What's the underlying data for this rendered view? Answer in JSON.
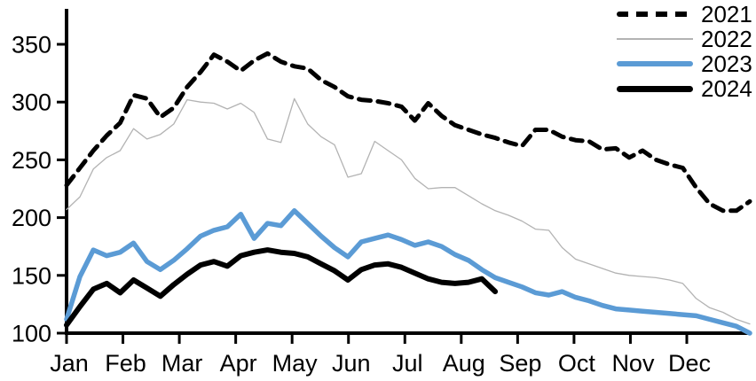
{
  "legend": {
    "items": [
      {
        "label": "2021"
      },
      {
        "label": "2022"
      },
      {
        "label": "2023"
      },
      {
        "label": "2024"
      }
    ]
  },
  "chart_data": {
    "type": "line",
    "title": "",
    "xlabel": "",
    "ylabel": "",
    "x_unit": "weekly points across one year",
    "categories": [
      "Jan",
      "Feb",
      "Mar",
      "Apr",
      "May",
      "Jun",
      "Jul",
      "Aug",
      "Sep",
      "Oct",
      "Nov",
      "Dec"
    ],
    "y_ticks": [
      100,
      150,
      200,
      250,
      300,
      350
    ],
    "ylim": [
      100,
      360
    ],
    "grid": false,
    "legend_position": "top-right",
    "series": [
      {
        "name": "2021",
        "color": "#000000",
        "line_style": "dashed",
        "width": 5,
        "values": [
          228,
          243,
          258,
          271,
          282,
          306,
          303,
          287,
          295,
          313,
          326,
          341,
          335,
          327,
          336,
          342,
          335,
          331,
          329,
          319,
          313,
          305,
          302,
          301,
          299,
          296,
          284,
          299,
          288,
          280,
          276,
          272,
          269,
          265,
          262,
          276,
          276,
          270,
          267,
          266,
          259,
          260,
          252,
          258,
          250,
          246,
          243,
          226,
          212,
          206,
          206,
          214
        ]
      },
      {
        "name": "2022",
        "color": "#b3b3b3",
        "line_style": "thin-solid",
        "width": 1.3,
        "values": [
          207,
          218,
          242,
          252,
          258,
          277,
          268,
          272,
          281,
          302,
          300,
          299,
          294,
          299,
          291,
          268,
          265,
          303,
          281,
          270,
          263,
          235,
          238,
          266,
          258,
          250,
          234,
          225,
          226,
          226,
          219,
          212,
          206,
          202,
          197,
          190,
          189,
          174,
          164,
          160,
          156,
          152,
          150,
          149,
          148,
          146,
          143,
          130,
          122,
          118,
          112,
          108
        ]
      },
      {
        "name": "2023",
        "color": "#5b9bd5",
        "line_style": "solid",
        "width": 5.5,
        "values": [
          112,
          149,
          172,
          167,
          170,
          178,
          162,
          155,
          163,
          173,
          184,
          189,
          192,
          203,
          182,
          195,
          193,
          206,
          195,
          184,
          174,
          166,
          179,
          182,
          185,
          181,
          176,
          179,
          175,
          168,
          163,
          155,
          148,
          144,
          140,
          135,
          133,
          136,
          131,
          128,
          124,
          121,
          120,
          119,
          118,
          117,
          116,
          115,
          112,
          109,
          106,
          100
        ]
      },
      {
        "name": "2024",
        "color": "#000000",
        "line_style": "solid",
        "width": 6,
        "values": [
          107,
          123,
          138,
          143,
          135,
          146,
          139,
          132,
          142,
          151,
          159,
          162,
          158,
          167,
          170,
          172,
          170,
          169,
          166,
          160,
          154,
          146,
          155,
          159,
          160,
          157,
          152,
          147,
          144,
          143,
          144,
          147,
          136
        ]
      }
    ]
  }
}
